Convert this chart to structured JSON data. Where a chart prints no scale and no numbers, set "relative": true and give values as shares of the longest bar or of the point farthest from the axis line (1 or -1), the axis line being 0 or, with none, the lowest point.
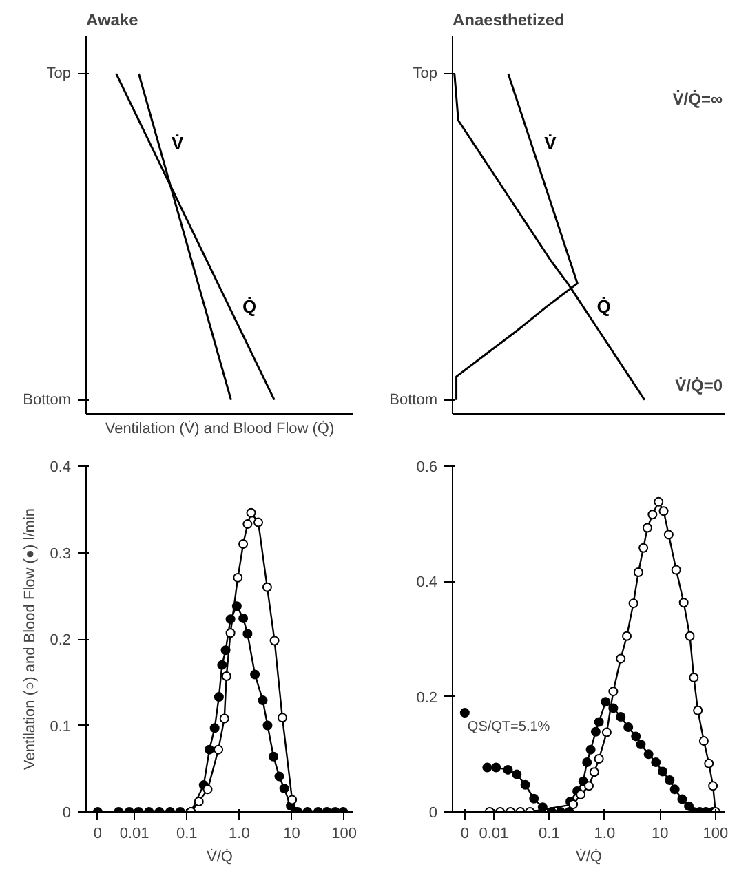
{
  "chart_data": [
    {
      "type": "line",
      "title": "Awake",
      "xlabel": "Ventilation (V̇) and Blood Flow (Q̇)",
      "orientation": "horizontal",
      "relative": true,
      "grid": false,
      "marker": "none",
      "line_style": "solid",
      "categories": [
        "Top",
        null,
        null,
        null,
        null,
        null,
        null,
        null,
        null,
        null,
        null,
        null,
        null,
        null,
        "Bottom"
      ],
      "series": [
        {
          "name": "V̇",
          "color": "#000000",
          "values": [
            0.28,
            0.315,
            0.35,
            0.385,
            0.42,
            0.455,
            0.49,
            0.525,
            0.56,
            0.595,
            0.63,
            0.665,
            0.7,
            0.735,
            0.77
          ]
        },
        {
          "name": "Q̇",
          "color": "#000000",
          "values": [
            0.16,
            0.22,
            0.28,
            0.34,
            0.4,
            0.46,
            0.52,
            0.58,
            0.64,
            0.7,
            0.76,
            0.82,
            0.88,
            0.94,
            1.0
          ]
        }
      ]
    },
    {
      "type": "line",
      "title": "Anaesthetized",
      "orientation": "horizontal",
      "relative": true,
      "grid": false,
      "marker": "none",
      "line_style": "solid",
      "categories": [
        "Top",
        null,
        null,
        null,
        null,
        null,
        null,
        null,
        null,
        null,
        null,
        null,
        null,
        null,
        "Bottom"
      ],
      "annotations": [
        "V̇/Q̇=∞",
        "V̇/Q̇=0"
      ],
      "series": [
        {
          "name": "V̇",
          "color": "#000000",
          "values": [
            0.29,
            0.33,
            0.37,
            0.41,
            0.45,
            0.49,
            0.53,
            0.57,
            0.61,
            0.65,
            0.49,
            0.34,
            0.18,
            0.02,
            0.02
          ]
        },
        {
          "name": "Q̇",
          "color": "#000000",
          "values": [
            0.01,
            0.02,
            0.03,
            0.11,
            0.19,
            0.27,
            0.35,
            0.43,
            0.51,
            0.6,
            0.68,
            0.76,
            0.84,
            0.92,
            1.0
          ]
        }
      ]
    },
    {
      "type": "line",
      "xlabel": "V̇/Q̇",
      "ylabel": "Ventilation (○) and Blood Flow (●) l/min",
      "log": "x",
      "xlim": [
        0.0012,
        150
      ],
      "xticks": [
        {
          "value": 0.002,
          "label": "0"
        },
        0.01,
        0.1,
        {
          "value": 1,
          "label": "1.0"
        },
        10,
        100
      ],
      "ylim": [
        0,
        0.4
      ],
      "yticks": [
        0,
        0.1,
        0.2,
        0.3,
        0.4
      ],
      "grid": false,
      "marker": "circle",
      "line_style": "solid",
      "series": [
        {
          "type": "scatter",
          "color": "#000000",
          "x": [
            0.002
          ],
          "values": [
            0
          ]
        },
        {
          "color": "#000000",
          "x": [
            0.005,
            0.008,
            0.012,
            0.019,
            0.03,
            0.048,
            0.075,
            0.12,
            0.21,
            0.27,
            0.34,
            0.41,
            0.47,
            0.55,
            0.68,
            0.9,
            1.19,
            1.44,
            1.99,
            2.81,
            3.47,
            4.5,
            5.8,
            7.2,
            9.6,
            12,
            13,
            20,
            32,
            47,
            68,
            96
          ],
          "values": [
            0,
            0,
            0,
            0,
            0,
            0,
            0,
            0,
            0.031,
            0.072,
            0.097,
            0.133,
            0.17,
            0.187,
            0.223,
            0.238,
            0.224,
            0.206,
            0.159,
            0.129,
            0.1,
            0.064,
            0.041,
            0.027,
            0.007,
            0,
            0,
            0,
            0,
            0,
            0,
            0
          ]
        },
        {
          "color": "#ffffff",
          "x": [
            0.12,
            0.17,
            0.25,
            0.4,
            0.52,
            0.57,
            0.68,
            0.94,
            1.19,
            1.44,
            1.68,
            2.31,
            3.41,
            4.71,
            6.64,
            10.2
          ],
          "values": [
            0,
            0.012,
            0.026,
            0.072,
            0.108,
            0.157,
            0.207,
            0.271,
            0.31,
            0.333,
            0.346,
            0.335,
            0.26,
            0.198,
            0.109,
            0.014
          ]
        }
      ]
    },
    {
      "type": "line",
      "xlabel": "V̇/Q̇",
      "log": "x",
      "xlim": [
        0.0018,
        150
      ],
      "xticks": [
        {
          "value": 0.003,
          "label": "0"
        },
        0.01,
        0.1,
        {
          "value": 1,
          "label": "1.0"
        },
        10,
        100
      ],
      "ylim": [
        0,
        0.6
      ],
      "yticks": [
        0,
        0.2,
        0.4,
        0.6
      ],
      "grid": false,
      "marker": "circle",
      "line_style": "solid",
      "annotations": [
        {
          "text": "QS/QT=5.1%",
          "x": 0.003,
          "y": 0.172
        }
      ],
      "series": [
        {
          "type": "scatter",
          "color": "#000000",
          "x": [
            0.003
          ],
          "values": [
            0.172
          ]
        },
        {
          "color": "#000000",
          "x": [
            0.0076,
            0.011,
            0.018,
            0.026,
            0.037,
            0.053,
            0.076,
            0.11,
            0.16,
            0.23,
            0.24,
            0.32,
            0.41,
            0.48,
            0.56,
            0.69,
            0.79,
            1.04,
            1.43,
            1.95,
            2.67,
            3.66,
            4.5,
            6.2,
            8.4,
            11.1,
            14.9,
            18.4,
            25,
            33,
            40,
            52,
            67,
            89
          ],
          "values": [
            0.077,
            0.077,
            0.073,
            0.065,
            0.047,
            0.023,
            0.008,
            0,
            0,
            0,
            0.018,
            0.036,
            0.053,
            0.086,
            0.108,
            0.139,
            0.156,
            0.191,
            0.18,
            0.165,
            0.147,
            0.131,
            0.117,
            0.1,
            0.086,
            0.07,
            0.055,
            0.039,
            0.022,
            0.01,
            0,
            0,
            0,
            0
          ]
        },
        {
          "color": "#ffffff",
          "x": [
            0.0084,
            0.013,
            0.02,
            0.03,
            0.045,
            0.27,
            0.37,
            0.52,
            0.65,
            0.79,
            1.09,
            1.43,
            1.95,
            2.51,
            3.3,
            4.06,
            5.0,
            5.9,
            7.3,
            9.4,
            11.6,
            14.3,
            19.5,
            26.7,
            34.4,
            40.6,
            48,
            61.6,
            76,
            90,
            100
          ],
          "values": [
            0,
            0,
            0,
            0,
            0,
            0.013,
            0.03,
            0.045,
            0.069,
            0.092,
            0.138,
            0.209,
            0.266,
            0.305,
            0.362,
            0.416,
            0.458,
            0.493,
            0.516,
            0.538,
            0.522,
            0.481,
            0.42,
            0.363,
            0.305,
            0.233,
            0.176,
            0.123,
            0.084,
            0.045,
            0
          ]
        }
      ]
    }
  ]
}
